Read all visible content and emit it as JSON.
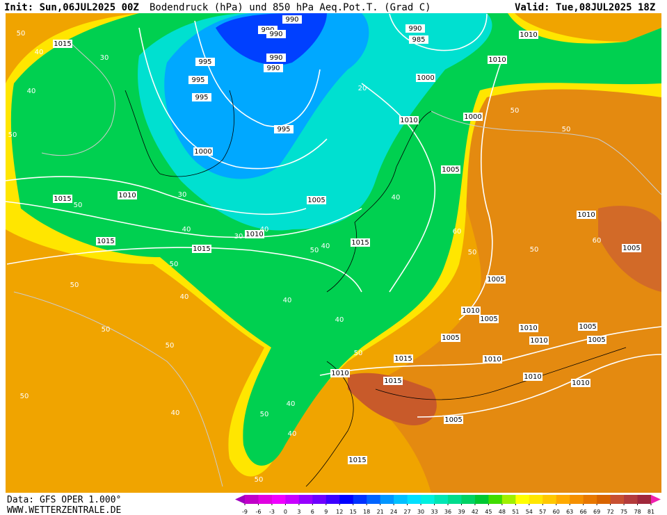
{
  "header": {
    "init": "Init: Sun,06JUL2025 00Z",
    "title": "Bodendruck (hPa) und 850 hPa Aeq.Pot.T. (Grad C)",
    "valid": "Valid: Tue,08JUL2025 18Z"
  },
  "footer": {
    "data": "Data: GFS OPER 1.000°",
    "site": "WWW.WETTERZENTRALE.DE"
  },
  "legend": {
    "ticks": [
      -9,
      -6,
      -3,
      0,
      3,
      6,
      9,
      12,
      15,
      18,
      21,
      24,
      27,
      30,
      33,
      36,
      39,
      42,
      45,
      48,
      51,
      54,
      57,
      60,
      63,
      66,
      69,
      72,
      75,
      78,
      81
    ],
    "colors": [
      "#a000c0",
      "#c000c8",
      "#e000e0",
      "#f000ff",
      "#c800ff",
      "#9600ff",
      "#6e00ff",
      "#3c00ff",
      "#0000ff",
      "#0032ff",
      "#0064ff",
      "#0096ff",
      "#00c0ff",
      "#00e0ff",
      "#00f0e0",
      "#00e6b4",
      "#00dc8c",
      "#00d264",
      "#00c832",
      "#40dc00",
      "#a0f000",
      "#ffff00",
      "#ffe600",
      "#ffc800",
      "#ffaa00",
      "#f59000",
      "#e87800",
      "#d86400",
      "#c85032",
      "#b43c3c",
      "#a0283c",
      "#f020b0"
    ]
  },
  "isobar_labels": [
    1015,
    1015,
    1015,
    1010,
    995,
    995,
    990,
    990,
    990,
    995,
    1000,
    990,
    990,
    1000,
    1005,
    1010,
    1015,
    1010,
    1000,
    1005,
    1010,
    1005,
    1005,
    1010,
    1010,
    1015,
    1010,
    1010,
    1015,
    1005,
    1010,
    1005,
    1005,
    1010,
    1005,
    1015,
    1010,
    1015,
    1010,
    1005,
    1010,
    985,
    990,
    995
  ],
  "thetae_labels": [
    50,
    40,
    30,
    40,
    50,
    50,
    40,
    30,
    40,
    50,
    30,
    20,
    40,
    50,
    40,
    40,
    50,
    50,
    40,
    50,
    40,
    50,
    50,
    60,
    50,
    50,
    50,
    60,
    50,
    40,
    50,
    40,
    50,
    40
  ]
}
